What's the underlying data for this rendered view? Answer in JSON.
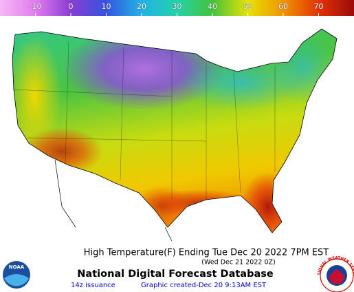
{
  "color_scale": {
    "range": [
      -20,
      80
    ],
    "ticks": [
      -10,
      0,
      10,
      20,
      30,
      40,
      50,
      60,
      70
    ],
    "colors": [
      "#f4b8f4",
      "#e27cf0",
      "#8a3cd2",
      "#3454e0",
      "#22b2e6",
      "#22d2a8",
      "#46c23e",
      "#e6e204",
      "#f09400",
      "#e23406",
      "#9c0a0a"
    ]
  },
  "title": "High Temperature(F) Ending Tue Dec 20 2022  7PM EST",
  "subtitle": "(Wed Dec 21 2022 0Z)",
  "source": "National Digital Forecast Database",
  "issuance": "14z issuance",
  "created": "Graphic created-Dec 20  9:13AM EST",
  "noaa_logo": "NOAA",
  "nws_logo": "NATIONAL WEATHER SERVICE"
}
